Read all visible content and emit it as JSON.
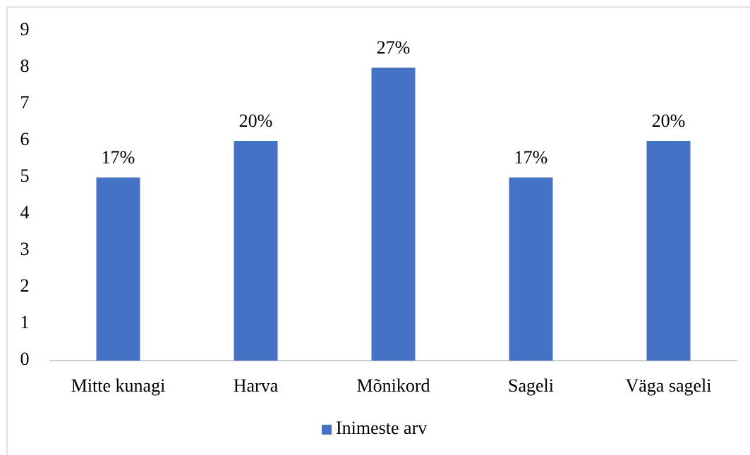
{
  "chart_data": {
    "type": "bar",
    "categories": [
      "Mitte kunagi",
      "Harva",
      "Mõnikord",
      "Sageli",
      "Väga sageli"
    ],
    "series": [
      {
        "name": "Inimeste arv",
        "color": "#4472c4",
        "values": [
          5,
          6,
          8,
          5,
          6
        ],
        "value_labels": [
          "17%",
          "20%",
          "27%",
          "17%",
          "20%"
        ]
      }
    ],
    "ylim": [
      0,
      9
    ],
    "yticks": [
      0,
      1,
      2,
      3,
      4,
      5,
      6,
      7,
      8,
      9
    ],
    "grid": false,
    "legend": "bottom"
  }
}
